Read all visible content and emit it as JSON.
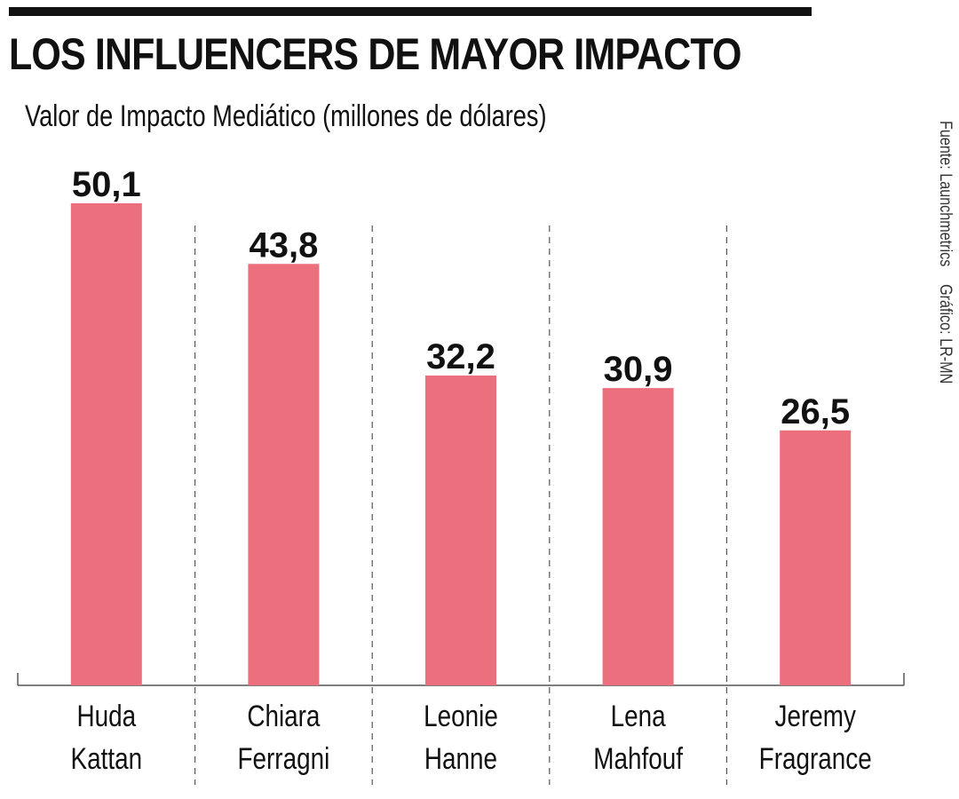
{
  "header": {
    "title": "LOS INFLUENCERS DE MAYOR IMPACTO",
    "subtitle": "Valor de Impacto Mediático (millones de dólares)"
  },
  "credits": {
    "source": "Fuente: Launchmetrics",
    "graphic": "Gráfico: LR-MN"
  },
  "colors": {
    "bar": "#ec6f7e"
  },
  "chart_data": {
    "type": "bar",
    "title": "LOS INFLUENCERS DE MAYOR IMPACTO",
    "subtitle": "Valor de Impacto Mediático (millones de dólares)",
    "xlabel": "",
    "ylabel": "",
    "grid": false,
    "categories": [
      [
        "Huda",
        "Kattan"
      ],
      [
        "Chiara",
        "Ferragni"
      ],
      [
        "Leonie",
        "Hanne"
      ],
      [
        "Lena",
        "Mahfouf"
      ],
      [
        "Jeremy",
        "Fragrance"
      ]
    ],
    "values": [
      50.1,
      43.8,
      32.2,
      30.9,
      26.5
    ],
    "value_labels": [
      "50,1",
      "43,8",
      "32,2",
      "30,9",
      "26,5"
    ],
    "ylim": [
      0,
      50.1
    ]
  }
}
